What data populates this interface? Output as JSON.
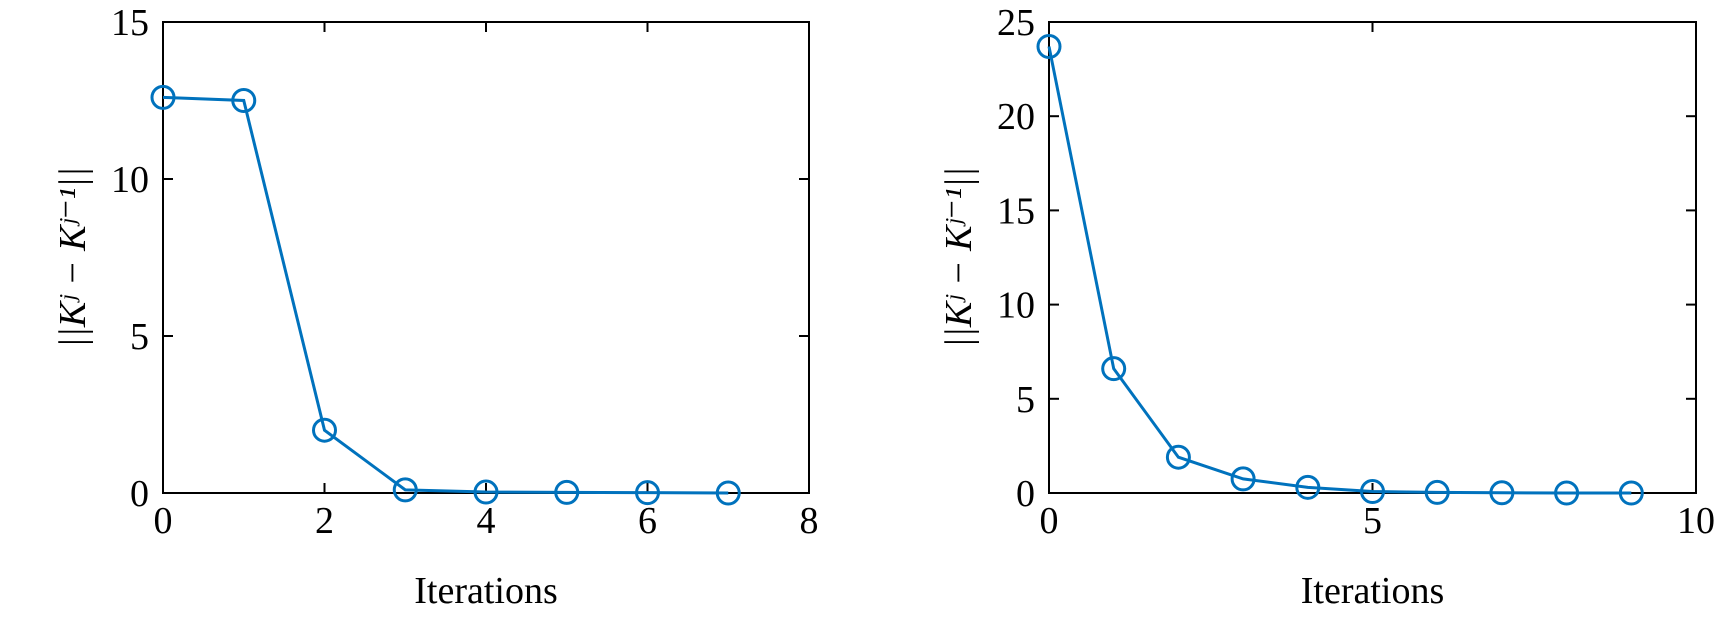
{
  "chart_data": [
    {
      "type": "line",
      "xlabel": "Iterations",
      "ylabel": "||Kʲ − Kʲ⁻¹||",
      "x": [
        0,
        1,
        2,
        3,
        4,
        5,
        6,
        7
      ],
      "values": [
        12.6,
        12.5,
        2.0,
        0.1,
        0.03,
        0.02,
        0.01,
        0.0
      ],
      "color": "#0072bd",
      "xlim": [
        0,
        8
      ],
      "xticks": [
        0,
        2,
        4,
        6,
        8
      ],
      "ylim": [
        0,
        15
      ],
      "yticks": [
        0,
        5,
        10,
        15
      ]
    },
    {
      "type": "line",
      "xlabel": "Iterations",
      "ylabel": "||Kʲ − Kʲ⁻¹||",
      "x": [
        0,
        1,
        2,
        3,
        4,
        5,
        6,
        7,
        8,
        9
      ],
      "values": [
        23.7,
        6.6,
        1.9,
        0.75,
        0.3,
        0.08,
        0.03,
        0.01,
        0.0,
        0.0
      ],
      "color": "#0072bd",
      "xlim": [
        0,
        10
      ],
      "xticks": [
        0,
        5,
        10
      ],
      "ylim": [
        0,
        25
      ],
      "yticks": [
        0,
        5,
        10,
        15,
        20,
        25
      ]
    }
  ]
}
